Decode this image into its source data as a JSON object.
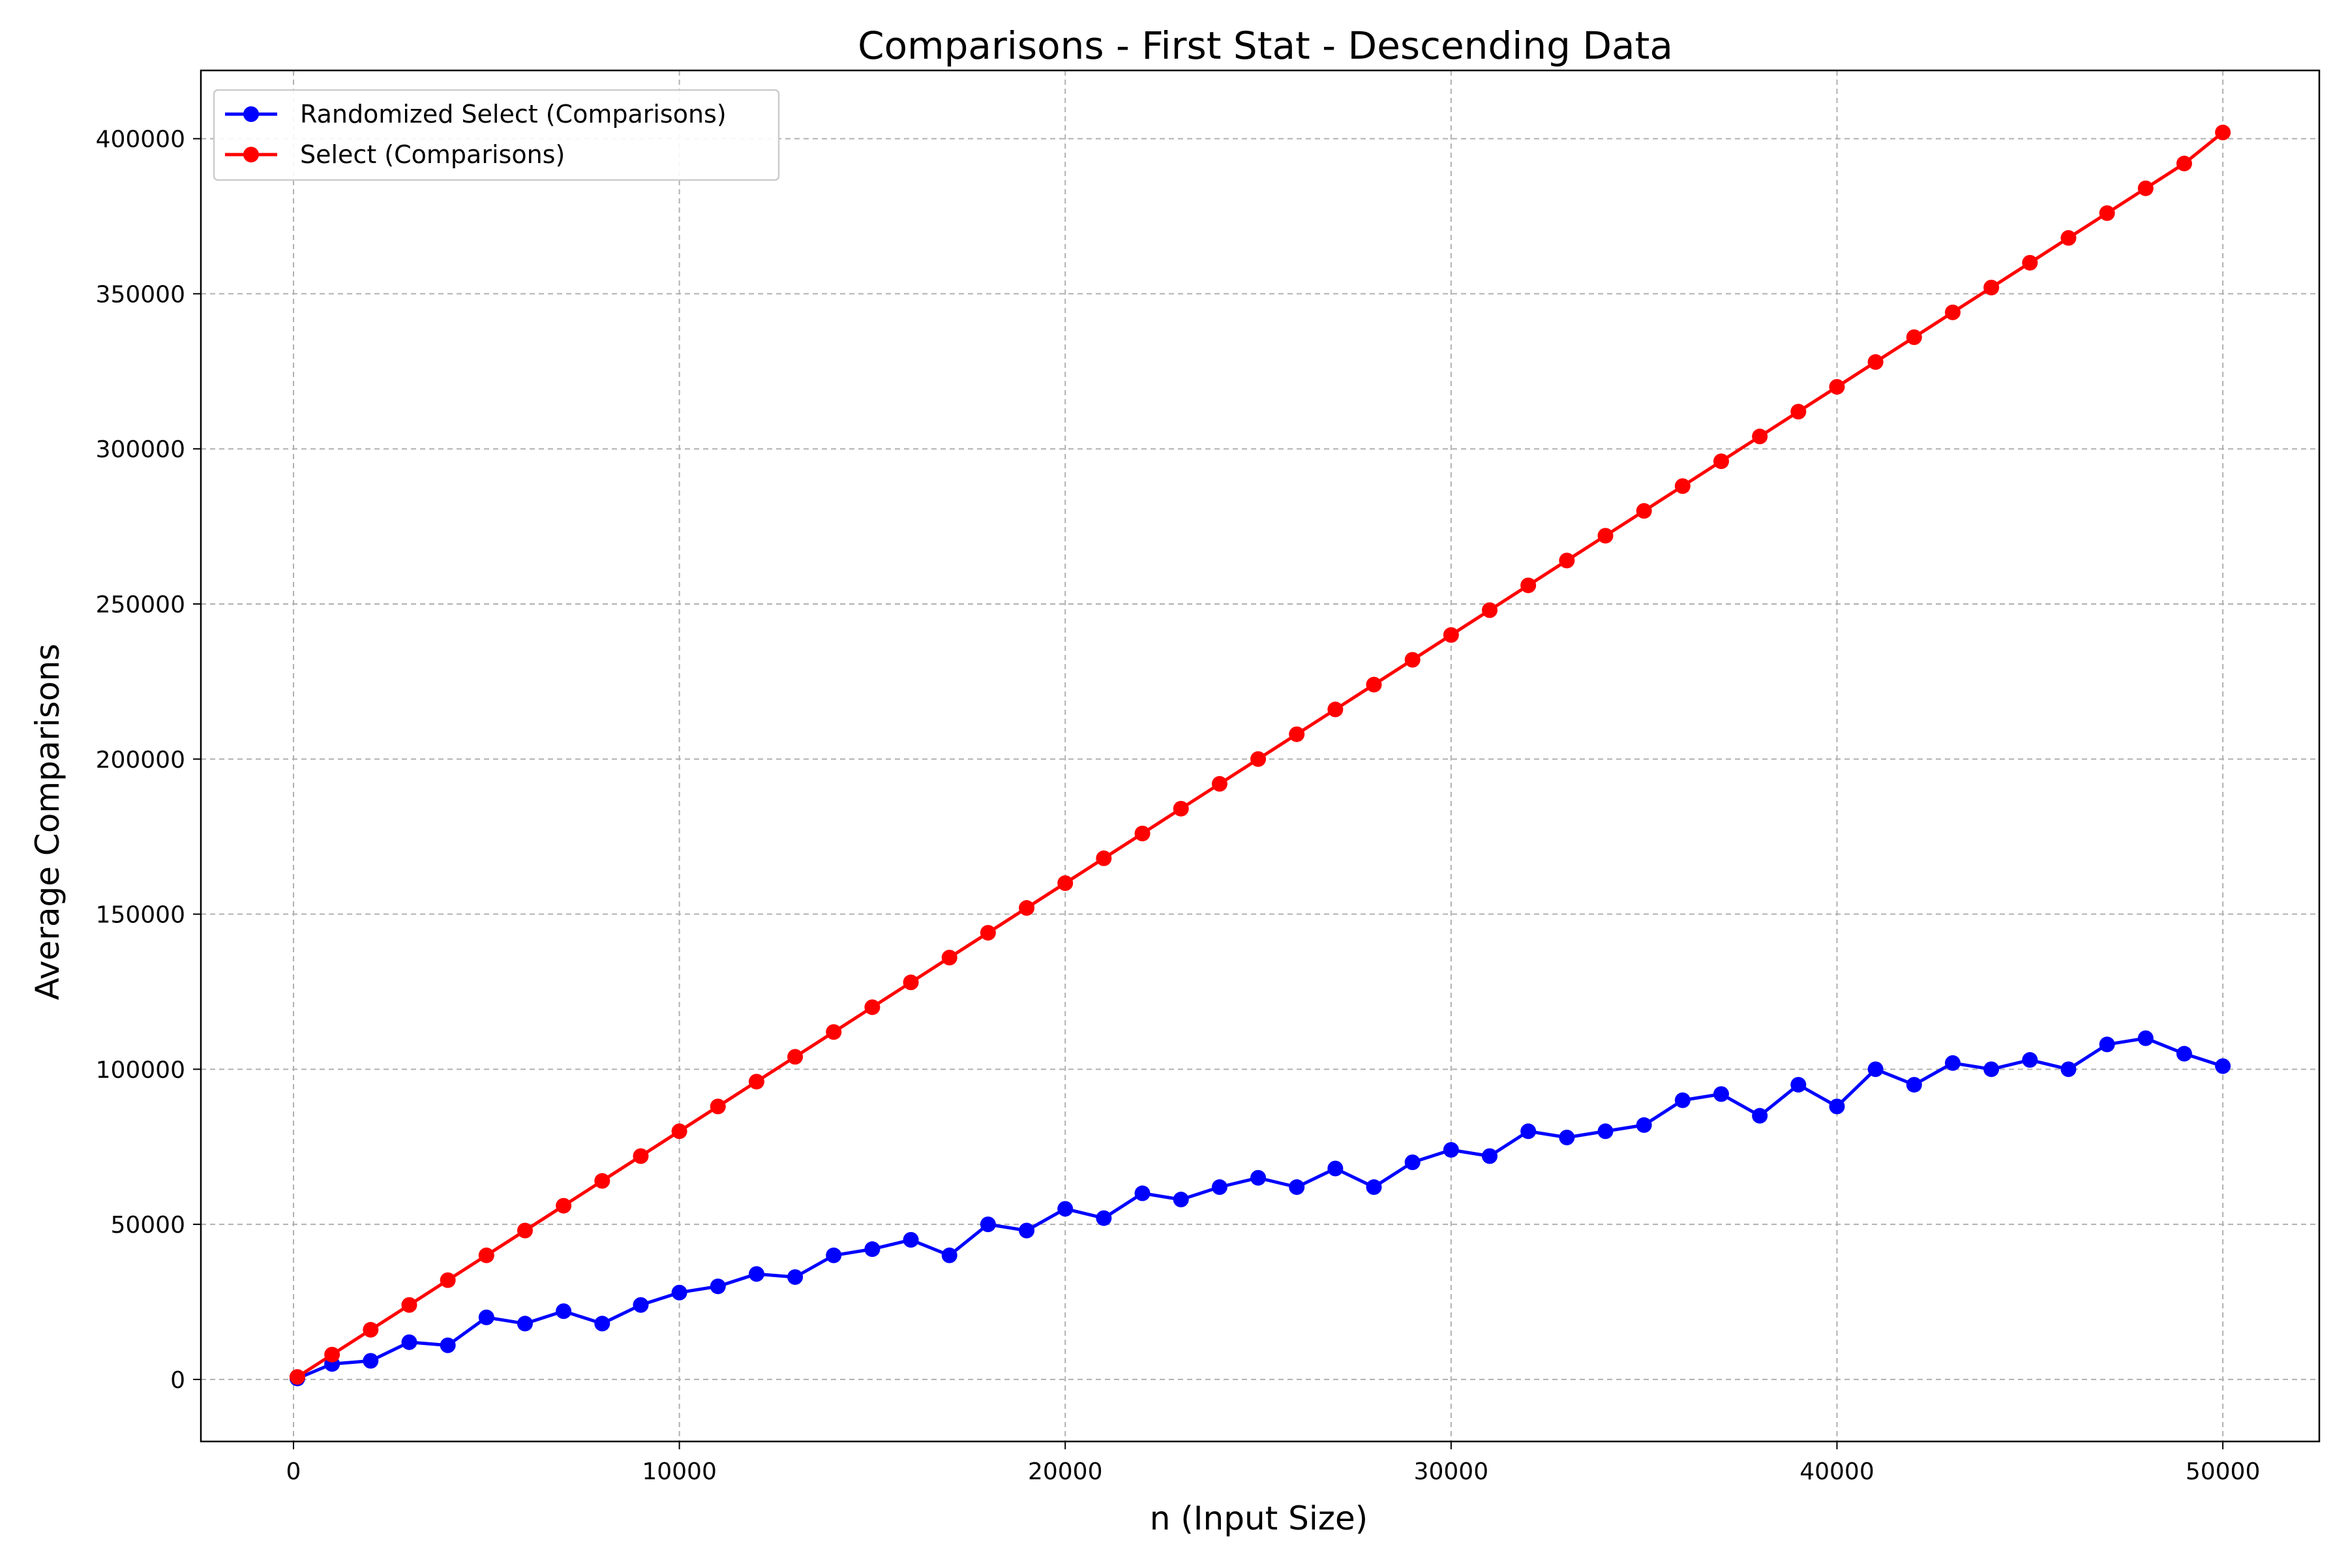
{
  "chart_data": {
    "type": "line",
    "title": "Comparisons - First Stat - Descending Data",
    "xlabel": "n (Input Size)",
    "ylabel": "Average Comparisons",
    "xlim": [
      -2400,
      52500
    ],
    "ylim": [
      -20000,
      422000
    ],
    "xticks": [
      0,
      10000,
      20000,
      30000,
      40000,
      50000
    ],
    "yticks": [
      0,
      50000,
      100000,
      150000,
      200000,
      250000,
      300000,
      350000,
      400000
    ],
    "grid": true,
    "legend_position": "top-left",
    "series": [
      {
        "name": "Randomized Select (Comparisons)",
        "color": "#0000ff",
        "marker": "circle",
        "x": [
          100,
          1000,
          2000,
          3000,
          4000,
          5000,
          6000,
          7000,
          8000,
          9000,
          10000,
          11000,
          12000,
          13000,
          14000,
          15000,
          16000,
          17000,
          18000,
          19000,
          20000,
          21000,
          22000,
          23000,
          24000,
          25000,
          26000,
          27000,
          28000,
          29000,
          30000,
          31000,
          32000,
          33000,
          34000,
          35000,
          36000,
          37000,
          38000,
          39000,
          40000,
          41000,
          42000,
          43000,
          44000,
          45000,
          46000,
          47000,
          48000,
          49000,
          50000
        ],
        "y": [
          300,
          5000,
          6000,
          12000,
          11000,
          20000,
          18000,
          22000,
          18000,
          24000,
          28000,
          30000,
          34000,
          33000,
          40000,
          42000,
          45000,
          40000,
          50000,
          48000,
          55000,
          52000,
          60000,
          58000,
          62000,
          65000,
          62000,
          68000,
          62000,
          70000,
          74000,
          72000,
          80000,
          78000,
          80000,
          82000,
          90000,
          92000,
          85000,
          95000,
          88000,
          100000,
          95000,
          102000,
          100000,
          103000,
          100000,
          108000,
          110000,
          105000,
          101000
        ]
      },
      {
        "name": "Select (Comparisons)",
        "color": "#ff0000",
        "marker": "circle",
        "x": [
          100,
          1000,
          2000,
          3000,
          4000,
          5000,
          6000,
          7000,
          8000,
          9000,
          10000,
          11000,
          12000,
          13000,
          14000,
          15000,
          16000,
          17000,
          18000,
          19000,
          20000,
          21000,
          22000,
          23000,
          24000,
          25000,
          26000,
          27000,
          28000,
          29000,
          30000,
          31000,
          32000,
          33000,
          34000,
          35000,
          36000,
          37000,
          38000,
          39000,
          40000,
          41000,
          42000,
          43000,
          44000,
          45000,
          46000,
          47000,
          48000,
          49000,
          50000
        ],
        "y": [
          800,
          8000,
          16000,
          24000,
          32000,
          40000,
          48000,
          56000,
          64000,
          72000,
          80000,
          88000,
          96000,
          104000,
          112000,
          120000,
          128000,
          136000,
          144000,
          152000,
          160000,
          168000,
          176000,
          184000,
          192000,
          200000,
          208000,
          216000,
          224000,
          232000,
          240000,
          248000,
          256000,
          264000,
          272000,
          280000,
          288000,
          296000,
          304000,
          312000,
          320000,
          328000,
          336000,
          344000,
          352000,
          360000,
          368000,
          376000,
          384000,
          392000,
          402000
        ]
      }
    ]
  }
}
